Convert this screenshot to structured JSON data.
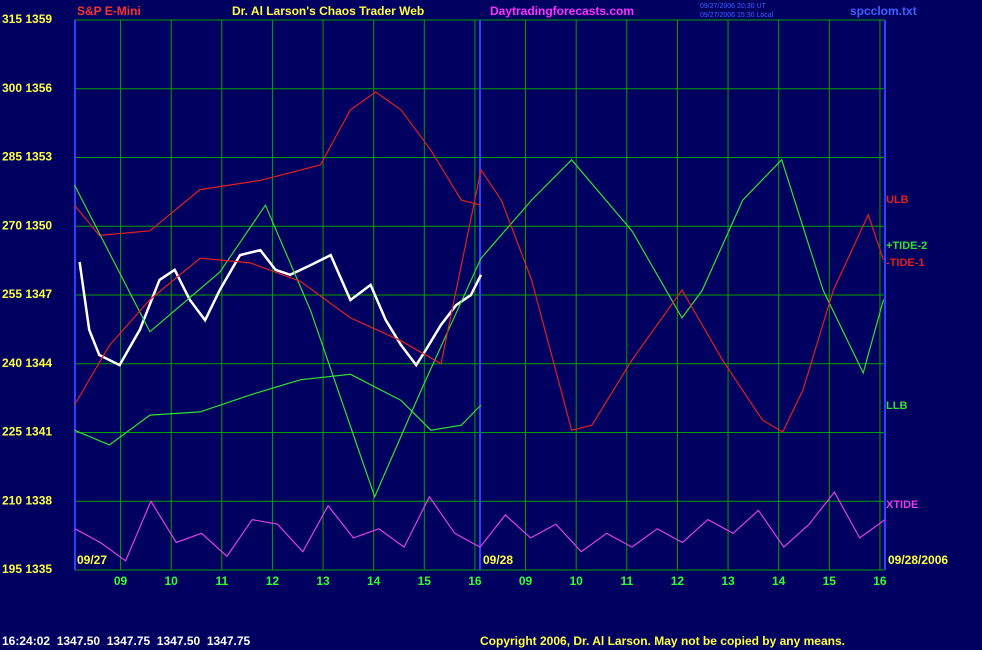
{
  "chart_data": {
    "type": "line",
    "symbol": "S&P E-Mini",
    "title": "Dr. Al Larson's Chaos Trader Web",
    "site": "Daytradingforecasts.com",
    "timestamps": [
      "09/27/2006 20:30 UT",
      "09/27/2006 15:30 Local"
    ],
    "file": "spcclom.txt",
    "date_labels": [
      "09/27",
      "09/28",
      "09/28/2006"
    ],
    "status": "16:24:02  1347.50  1347.75  1347.50  1347.75",
    "copyright": "Copyright 2006, Dr. Al Larson. May not be copied by any means.",
    "xlim": [
      8.1,
      24.1
    ],
    "ylim": [
      195,
      315
    ],
    "yticks": [
      {
        "value": 315,
        "label": "315 1359"
      },
      {
        "value": 300,
        "label": "300 1356"
      },
      {
        "value": 285,
        "label": "285 1353"
      },
      {
        "value": 270,
        "label": "270 1350"
      },
      {
        "value": 255,
        "label": "255 1347"
      },
      {
        "value": 240,
        "label": "240 1344"
      },
      {
        "value": 225,
        "label": "225 1341"
      },
      {
        "value": 210,
        "label": "210 1338"
      },
      {
        "value": 195,
        "label": "195 1335"
      }
    ],
    "xticks": [
      {
        "value": 9,
        "label": "09"
      },
      10,
      11,
      12,
      13,
      14,
      15,
      16,
      {
        "value": 17,
        "label": "09"
      },
      {
        "value": 18,
        "label": "10"
      },
      {
        "value": 19,
        "label": "11"
      },
      {
        "value": 20,
        "label": "12"
      },
      {
        "value": 21,
        "label": "13"
      },
      {
        "value": 22,
        "label": "14"
      },
      {
        "value": 23,
        "label": "15"
      },
      {
        "value": 24,
        "label": "16"
      }
    ],
    "grid": true,
    "series": [
      {
        "color": "#ffffff",
        "x": [
          8.19,
          8.38,
          8.58,
          8.98,
          9.38,
          9.77,
          10.07,
          10.37,
          10.67,
          10.96,
          11.36,
          11.76,
          12.06,
          12.35,
          12.75,
          13.15,
          13.54,
          13.94,
          14.24,
          14.54,
          14.84,
          15.03,
          15.33,
          15.63,
          15.92,
          16.12
        ],
        "values": [
          262.2,
          247.4,
          241.9,
          239.7,
          247.4,
          258.3,
          260.5,
          253.9,
          249.5,
          256.1,
          263.7,
          264.8,
          260.5,
          259.4,
          261.5,
          263.7,
          253.9,
          257.2,
          249.5,
          244.1,
          239.7,
          243.0,
          248.5,
          252.8,
          255.0,
          259.4
        ]
      },
      {
        "name": "ULB",
        "color": "#e02020",
        "x": [
          8.09,
          8.58,
          9.58,
          10.57,
          11.76,
          12.95,
          13.54,
          14.04,
          14.54,
          15.13,
          15.73,
          16.12
        ],
        "values": [
          274.6,
          268,
          269,
          278,
          280,
          283.4,
          295.4,
          299.3,
          295.4,
          286.6,
          275.7,
          274.6
        ]
      },
      {
        "name": "+TIDE-2",
        "color": "#30e030",
        "x": [
          8.09,
          9.58,
          10.96,
          11.86,
          12.75,
          14.02,
          14.94,
          16.12,
          17.12,
          17.91,
          19.1,
          20.09,
          20.49,
          21.29,
          22.06,
          22.88,
          23.67,
          24.07
        ],
        "values": [
          279,
          247,
          260,
          274.6,
          251.7,
          211,
          234.3,
          263,
          275.7,
          284.5,
          269,
          250,
          256,
          275.7,
          284.5,
          256,
          238,
          254
        ]
      },
      {
        "name": "-TIDE-1",
        "color": "#e02020",
        "x": [
          8.09,
          8.78,
          9.58,
          10.57,
          11.56,
          12.55,
          13.54,
          14.54,
          15.33,
          16.12,
          16.52,
          17.12,
          17.91,
          18.31,
          19.1,
          20.09,
          20.89,
          21.68,
          22.08,
          22.48,
          23.08,
          23.77,
          24.07
        ],
        "values": [
          231,
          244,
          254,
          263,
          262,
          258,
          250,
          245,
          240,
          282.3,
          275.7,
          258.3,
          225.5,
          226.6,
          240.8,
          256.1,
          240.8,
          227.7,
          225.1,
          234.3,
          256.1,
          272.5,
          262.6
        ]
      },
      {
        "name": "LLB",
        "color": "#30e030",
        "x": [
          8.09,
          8.78,
          9.58,
          10.57,
          11.56,
          12.55,
          13.54,
          14.54,
          15.13,
          15.73,
          16.12
        ],
        "values": [
          225.5,
          222.3,
          228.8,
          229.5,
          233.2,
          236.5,
          237.7,
          232,
          225.5,
          226.6,
          231
        ]
      },
      {
        "name": "XTIDE",
        "color": "#e040e0",
        "x": [
          8.1,
          8.6,
          9.1,
          9.6,
          10.1,
          10.6,
          11.1,
          11.6,
          12.1,
          12.6,
          13.1,
          13.6,
          14.1,
          14.6,
          15.1,
          15.6,
          16.1,
          16.6,
          17.1,
          17.6,
          18.1,
          18.6,
          19.1,
          19.6,
          20.1,
          20.6,
          21.1,
          21.6,
          22.1,
          22.6,
          23.1,
          23.6,
          24.1
        ],
        "values": [
          204,
          201,
          197,
          210,
          201,
          203,
          198,
          206,
          205,
          199,
          209,
          202,
          204,
          200,
          211,
          203,
          200,
          207,
          202,
          205,
          199,
          203,
          200,
          204,
          201,
          206,
          203,
          208,
          200,
          205,
          212,
          202,
          206
        ]
      }
    ]
  }
}
